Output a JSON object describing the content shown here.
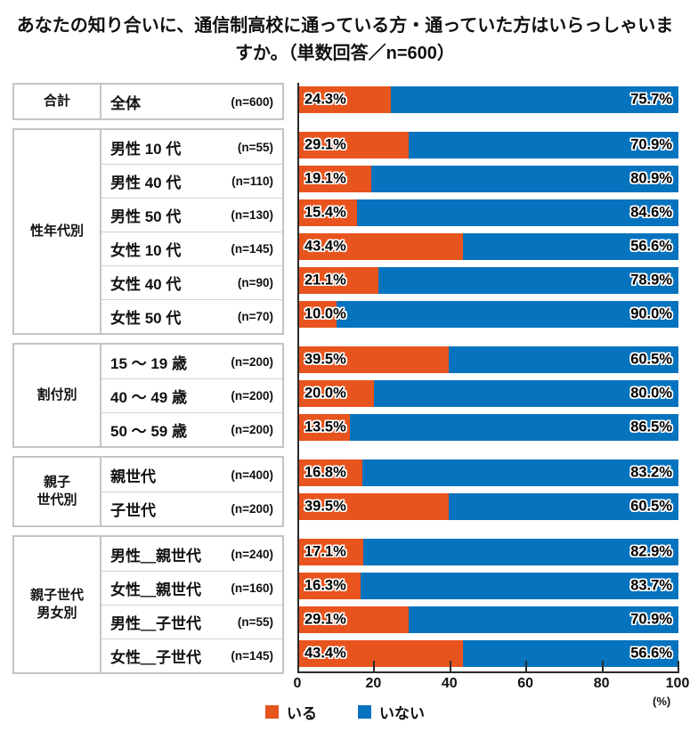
{
  "title": "あなたの知り合いに、通信制高校に通っている方・通っていた方はいらっしゃいますか。（単数回答／n=600）",
  "colors": {
    "yes": "#E8541E",
    "no": "#0673BE",
    "axis": "#2b2b2b",
    "table_border": "#c4c4c4"
  },
  "legend": [
    {
      "key": "yes",
      "label": "いる",
      "color": "#E8541E"
    },
    {
      "key": "no",
      "label": "いない",
      "color": "#0673BE"
    }
  ],
  "axis": {
    "ticks": [
      0,
      20,
      40,
      60,
      80,
      100
    ],
    "unit": "(%)",
    "min": 0,
    "max": 100
  },
  "groups": [
    {
      "label": "合計",
      "rows": [
        {
          "name": "全体",
          "n": "(n=600)",
          "yes": 24.3,
          "no": 75.7
        }
      ]
    },
    {
      "label": "性年代別",
      "rows": [
        {
          "name": "男性 10 代",
          "n": "(n=55)",
          "yes": 29.1,
          "no": 70.9
        },
        {
          "name": "男性 40 代",
          "n": "(n=110)",
          "yes": 19.1,
          "no": 80.9
        },
        {
          "name": "男性 50 代",
          "n": "(n=130)",
          "yes": 15.4,
          "no": 84.6
        },
        {
          "name": "女性 10 代",
          "n": "(n=145)",
          "yes": 43.4,
          "no": 56.6
        },
        {
          "name": "女性 40 代",
          "n": "(n=90)",
          "yes": 21.1,
          "no": 78.9
        },
        {
          "name": "女性 50 代",
          "n": "(n=70)",
          "yes": 10.0,
          "no": 90.0
        }
      ]
    },
    {
      "label": "割付別",
      "rows": [
        {
          "name": "15 ～ 19 歳",
          "n": "(n=200)",
          "yes": 39.5,
          "no": 60.5
        },
        {
          "name": "40 ～ 49 歳",
          "n": "(n=200)",
          "yes": 20.0,
          "no": 80.0
        },
        {
          "name": "50 ～ 59 歳",
          "n": "(n=200)",
          "yes": 13.5,
          "no": 86.5
        }
      ]
    },
    {
      "label": "親子\n世代別",
      "rows": [
        {
          "name": "親世代",
          "n": "(n=400)",
          "yes": 16.8,
          "no": 83.2
        },
        {
          "name": "子世代",
          "n": "(n=200)",
          "yes": 39.5,
          "no": 60.5
        }
      ]
    },
    {
      "label": "親子世代\n男女別",
      "rows": [
        {
          "name": "男性＿親世代",
          "n": "(n=240)",
          "yes": 17.1,
          "no": 82.9
        },
        {
          "name": "女性＿親世代",
          "n": "(n=160)",
          "yes": 16.3,
          "no": 83.7
        },
        {
          "name": "男性＿子世代",
          "n": "(n=55)",
          "yes": 29.1,
          "no": 70.9
        },
        {
          "name": "女性＿子世代",
          "n": "(n=145)",
          "yes": 43.4,
          "no": 56.6
        }
      ]
    }
  ],
  "chart_data": {
    "type": "bar",
    "orientation": "horizontal",
    "stacked": true,
    "title": "あなたの知り合いに、通信制高校に通っている方・通っていた方はいらっしゃいますか。（単数回答／n=600）",
    "categories": [
      "全体",
      "男性 10 代",
      "男性 40 代",
      "男性 50 代",
      "女性 10 代",
      "女性 40 代",
      "女性 50 代",
      "15 ～ 19 歳",
      "40 ～ 49 歳",
      "50 ～ 59 歳",
      "親世代",
      "子世代",
      "男性＿親世代",
      "女性＿親世代",
      "男性＿子世代",
      "女性＿子世代"
    ],
    "sample_sizes": [
      600,
      55,
      110,
      130,
      145,
      90,
      70,
      200,
      200,
      200,
      400,
      200,
      240,
      160,
      55,
      145
    ],
    "series": [
      {
        "name": "いる",
        "color": "#E8541E",
        "values": [
          24.3,
          29.1,
          19.1,
          15.4,
          43.4,
          21.1,
          10.0,
          39.5,
          20.0,
          13.5,
          16.8,
          39.5,
          17.1,
          16.3,
          29.1,
          43.4
        ]
      },
      {
        "name": "いない",
        "color": "#0673BE",
        "values": [
          75.7,
          70.9,
          80.9,
          84.6,
          56.6,
          78.9,
          90.0,
          60.5,
          80.0,
          86.5,
          83.2,
          60.5,
          82.9,
          83.7,
          70.9,
          56.6
        ]
      }
    ],
    "xlabel": "(%)",
    "xlim": [
      0,
      100
    ],
    "xticks": [
      0,
      20,
      40,
      60,
      80,
      100
    ],
    "legend_position": "bottom",
    "value_labels": "inside-ends",
    "grid": false
  }
}
